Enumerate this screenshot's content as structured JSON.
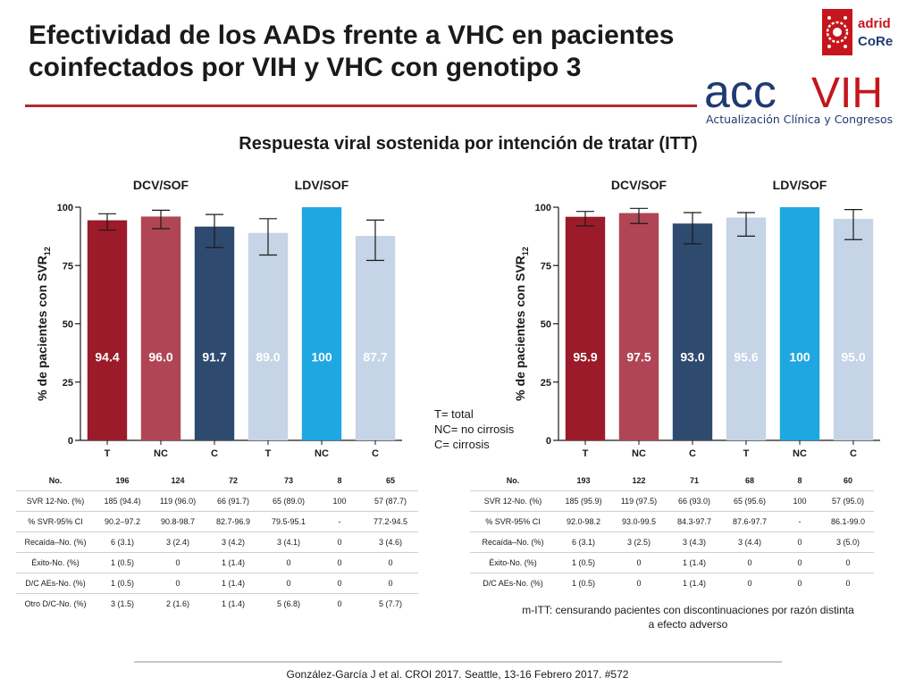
{
  "slide": {
    "title_lines": [
      "Efectividad de los AADs frente a VHC en pacientes",
      "coinfectados por VIH y VHC con genotipo 3"
    ],
    "subtitle": "Respuesta viral sostenida por intención de tratar (ITT)",
    "accent_color": "#b7262d",
    "logos": {
      "madrid_core": [
        "adrid",
        "CoRe"
      ],
      "acc_vih": {
        "main": "acc",
        "secondary": "VIH",
        "tagline": "Actualización Clínica y Congresos"
      }
    },
    "legend": [
      "T= total",
      "NC= no cirrosis",
      "C= cirrosis"
    ],
    "note": "m-ITT: censurando pacientes con discontinuaciones por razón distinta a efecto adverso",
    "footer": "González-García J et al. CROI 2017. Seattle, 13-16 Febrero 2017. #572"
  },
  "chart_data": [
    {
      "type": "bar",
      "panel": "ITT",
      "group_labels": [
        "DCV/SOF",
        "LDV/SOF"
      ],
      "categories": [
        "T",
        "NC",
        "C",
        "T",
        "NC",
        "C"
      ],
      "values": [
        94.4,
        96.0,
        91.7,
        89.0,
        100,
        87.7
      ],
      "value_labels": [
        "94.4",
        "96.0",
        "91.7",
        "89.0",
        "100",
        "87.7"
      ],
      "ci": [
        [
          90.2,
          97.2
        ],
        [
          90.8,
          98.7
        ],
        [
          82.7,
          96.9
        ],
        [
          79.5,
          95.1
        ],
        null,
        [
          77.2,
          94.5
        ]
      ],
      "colors": [
        "#9b1b2a",
        "#b04655",
        "#2e4a6e",
        "#c5d4e6",
        "#1ea7e1",
        "#c5d4e6"
      ],
      "ylabel": "% de pacientes con SVR",
      "ylabel_sub": "12",
      "ylim": [
        0,
        100
      ],
      "yticks": [
        0,
        25,
        50,
        75,
        100
      ]
    },
    {
      "type": "bar",
      "panel": "m-ITT",
      "group_labels": [
        "DCV/SOF",
        "LDV/SOF"
      ],
      "categories": [
        "T",
        "NC",
        "C",
        "T",
        "NC",
        "C"
      ],
      "values": [
        95.9,
        97.5,
        93.0,
        95.6,
        100,
        95.0
      ],
      "value_labels": [
        "95.9",
        "97.5",
        "93.0",
        "95.6",
        "100",
        "95.0"
      ],
      "ci": [
        [
          92.0,
          98.2
        ],
        [
          93.0,
          99.5
        ],
        [
          84.3,
          97.7
        ],
        [
          87.6,
          97.7
        ],
        null,
        [
          86.1,
          99.0
        ]
      ],
      "colors": [
        "#9b1b2a",
        "#b04655",
        "#2e4a6e",
        "#c5d4e6",
        "#1ea7e1",
        "#c5d4e6"
      ],
      "ylabel": "% de pacientes con SVR",
      "ylabel_sub": "12",
      "ylim": [
        0,
        100
      ],
      "yticks": [
        0,
        25,
        50,
        75,
        100
      ]
    }
  ],
  "tables": [
    {
      "rows": [
        [
          "No.",
          "196",
          "124",
          "72",
          "73",
          "8",
          "65"
        ],
        [
          "SVR 12-No. (%)",
          "185 (94.4)",
          "119 (96.0)",
          "66 (91.7)",
          "65 (89.0)",
          "100",
          "57 (87.7)"
        ],
        [
          "% SVR-95% CI",
          "90.2–97.2",
          "90.8-98.7",
          "82.7-96.9",
          "79.5-95.1",
          "-",
          "77.2-94.5"
        ],
        [
          "Recaída–No. (%)",
          "6 (3.1)",
          "3 (2.4)",
          "3 (4.2)",
          "3 (4.1)",
          "0",
          "3 (4.6)"
        ],
        [
          "Éxito-No. (%)",
          "1 (0.5)",
          "0",
          "1 (1.4)",
          "0",
          "0",
          "0"
        ],
        [
          "D/C AEs-No. (%)",
          "1 (0.5)",
          "0",
          "1 (1.4)",
          "0",
          "0",
          "0"
        ],
        [
          "Otro D/C-No. (%)",
          "3 (1.5)",
          "2 (1.6)",
          "1 (1.4)",
          "5 (6.8)",
          "0",
          "5 (7.7)"
        ]
      ]
    },
    {
      "rows": [
        [
          "No.",
          "193",
          "122",
          "71",
          "68",
          "8",
          "60"
        ],
        [
          "SVR 12-No. (%)",
          "185 (95.9)",
          "119 (97.5)",
          "66 (93.0)",
          "65 (95.6)",
          "100",
          "57 (95.0)"
        ],
        [
          "% SVR-95% CI",
          "92.0-98.2",
          "93.0-99.5",
          "84.3-97.7",
          "87.6-97.7",
          "-",
          "86.1-99.0"
        ],
        [
          "Recaída–No. (%)",
          "6 (3.1)",
          "3 (2.5)",
          "3 (4.3)",
          "3 (4.4)",
          "0",
          "3 (5.0)"
        ],
        [
          "Éxito-No. (%)",
          "1 (0.5)",
          "0",
          "1 (1.4)",
          "0",
          "0",
          "0"
        ],
        [
          "D/C AEs-No. (%)",
          "1 (0.5)",
          "0",
          "1 (1.4)",
          "0",
          "0",
          "0"
        ]
      ]
    }
  ]
}
